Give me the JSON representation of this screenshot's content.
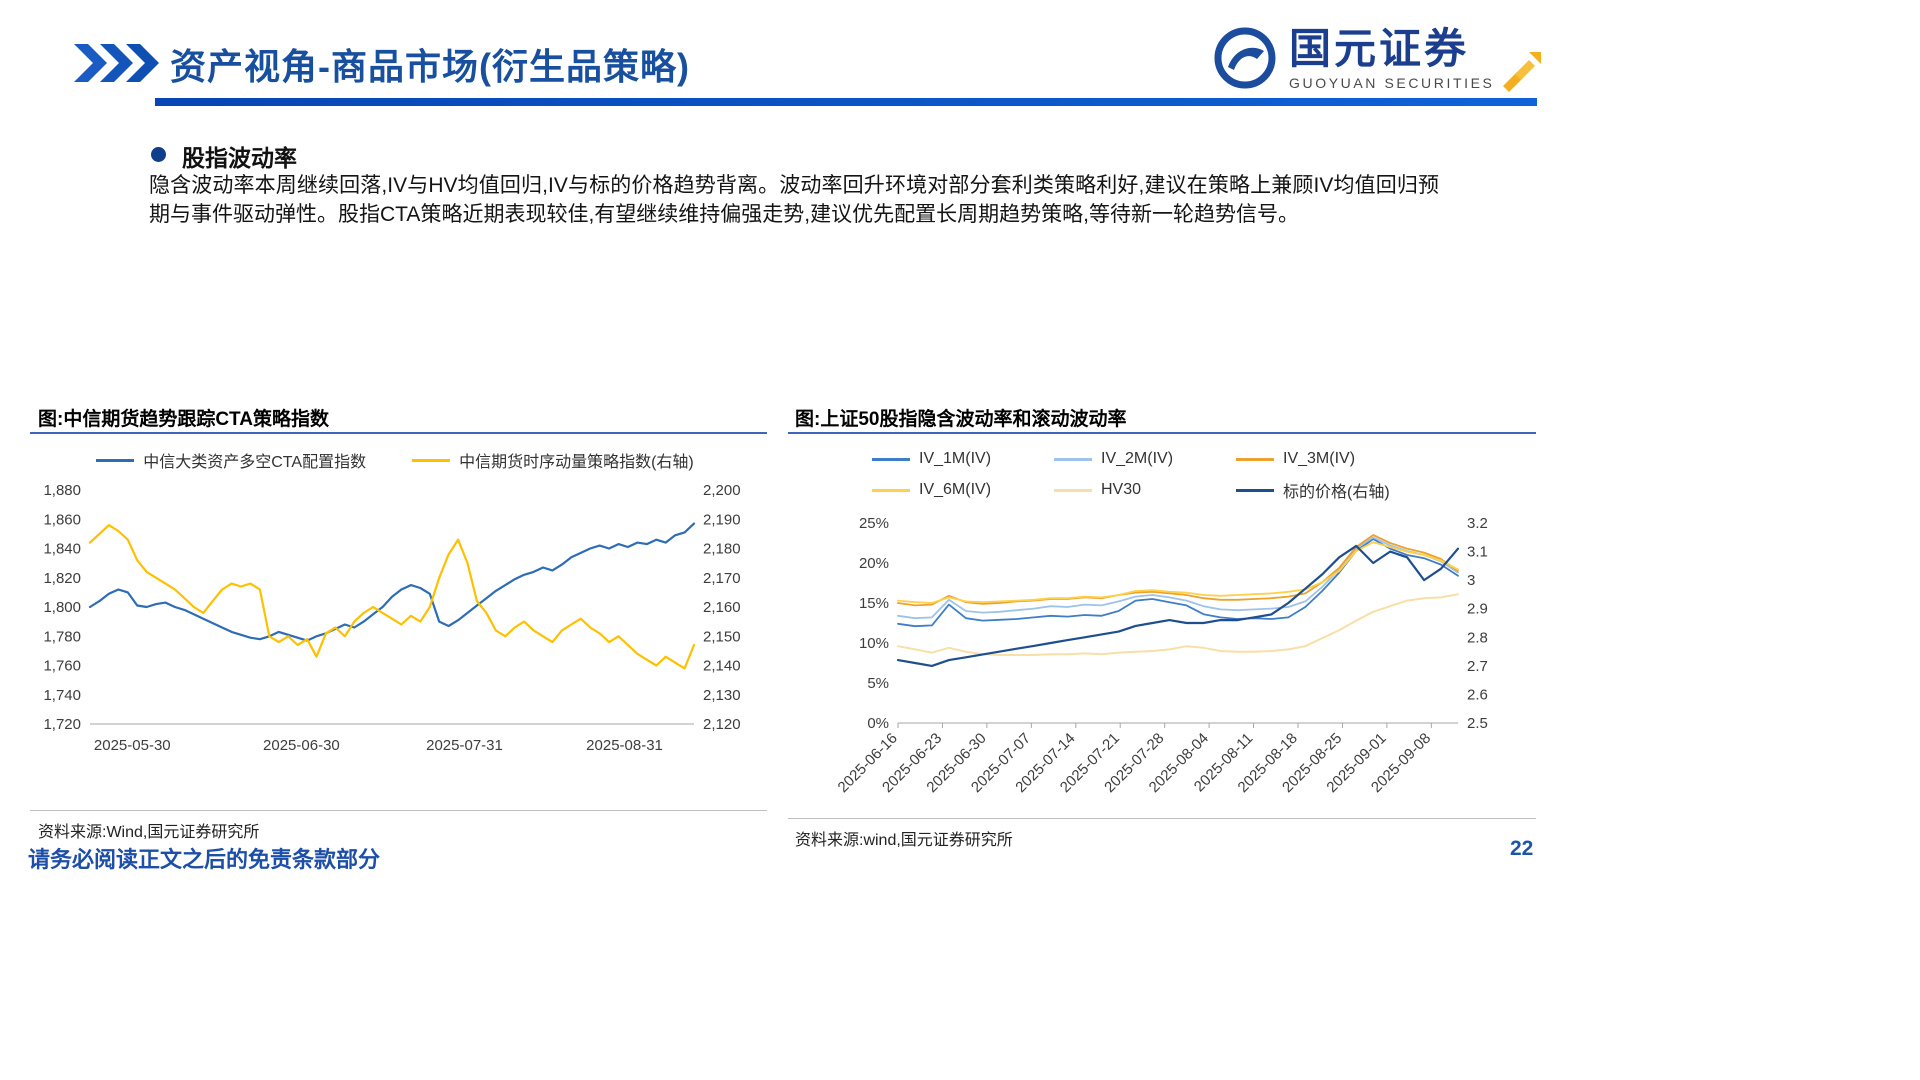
{
  "header": {
    "title": "资产视角-商品市场(衍生品策略)",
    "logo_cn": "国元证券",
    "logo_en": "GUOYUAN SECURITIES"
  },
  "section": {
    "bullet_title": "股指波动率",
    "paragraph": "隐含波动率本周继续回落,IV与HV均值回归,IV与标的价格趋势背离。波动率回升环境对部分套利类策略利好,建议在策略上兼顾IV均值回归预期与事件驱动弹性。股指CTA策略近期表现较佳,有望继续维持偏强走势,建议优先配置长周期趋势策略,等待新一轮趋势信号。"
  },
  "footer": {
    "disclaimer": "请务必阅读正文之后的免责条款部分",
    "page_number": "22"
  },
  "colors": {
    "accent_blue": "#18509F",
    "bar_blue": "#0E63D6",
    "cta_blue": "#2E6DB5",
    "momentum_yellow": "#FFC000",
    "iv1m": "#3E7DC7",
    "iv2m": "#9DC3E8",
    "iv3m": "#EDA12F",
    "iv6m": "#FFD04A",
    "hv30": "#F8DFA8",
    "price_navy": "#1F4E8F"
  },
  "chart_data": [
    {
      "type": "line",
      "title": "图:中信期货趋势跟踪CTA策略指数",
      "source": "资料来源:Wind,国元证券研究所",
      "legend_position": "top",
      "grid": false,
      "left_axis": {
        "min": 1720,
        "max": 1880,
        "ticks": [
          {
            "v": 1720,
            "label": "1,720"
          },
          {
            "v": 1740,
            "label": "1,740"
          },
          {
            "v": 1760,
            "label": "1,760"
          },
          {
            "v": 1780,
            "label": "1,780"
          },
          {
            "v": 1800,
            "label": "1,800"
          },
          {
            "v": 1820,
            "label": "1,820"
          },
          {
            "v": 1840,
            "label": "1,840"
          },
          {
            "v": 1860,
            "label": "1,860"
          },
          {
            "v": 1880,
            "label": "1,880"
          }
        ]
      },
      "right_axis": {
        "min": 2120,
        "max": 2200,
        "ticks": [
          {
            "v": 2120,
            "label": "2,120"
          },
          {
            "v": 2130,
            "label": "2,130"
          },
          {
            "v": 2140,
            "label": "2,140"
          },
          {
            "v": 2150,
            "label": "2,150"
          },
          {
            "v": 2160,
            "label": "2,160"
          },
          {
            "v": 2170,
            "label": "2,170"
          },
          {
            "v": 2180,
            "label": "2,180"
          },
          {
            "v": 2190,
            "label": "2,190"
          },
          {
            "v": 2200,
            "label": "2,200"
          }
        ]
      },
      "x_ticks": [
        {
          "label": "2025-05-30",
          "pos": 0.07
        },
        {
          "label": "2025-06-30",
          "pos": 0.35
        },
        {
          "label": "2025-07-31",
          "pos": 0.62
        },
        {
          "label": "2025-08-31",
          "pos": 0.885
        }
      ],
      "series": [
        {
          "name": "中信大类资产多空CTA配置指数",
          "color": "#2E6DB5",
          "axis": "left",
          "width": 2.2,
          "values": [
            1800,
            1804,
            1809,
            1812,
            1810,
            1801,
            1800,
            1802,
            1803,
            1800,
            1798,
            1795,
            1792,
            1789,
            1786,
            1783,
            1781,
            1779,
            1778,
            1780,
            1783,
            1781,
            1779,
            1777,
            1780,
            1782,
            1785,
            1788,
            1786,
            1790,
            1795,
            1800,
            1807,
            1812,
            1815,
            1813,
            1809,
            1790,
            1787,
            1791,
            1796,
            1801,
            1806,
            1811,
            1815,
            1819,
            1822,
            1824,
            1827,
            1825,
            1829,
            1834,
            1837,
            1840,
            1842,
            1840,
            1843,
            1841,
            1844,
            1843,
            1846,
            1844,
            1849,
            1851,
            1857
          ]
        },
        {
          "name": "中信期货时序动量策略指数(右轴)",
          "color": "#FFC000",
          "axis": "right",
          "width": 2.2,
          "values": [
            2182,
            2185,
            2188,
            2186,
            2183,
            2176,
            2172,
            2170,
            2168,
            2166,
            2163,
            2160,
            2158,
            2162,
            2166,
            2168,
            2167,
            2168,
            2166,
            2150,
            2148,
            2150,
            2147,
            2149,
            2143,
            2151,
            2153,
            2150,
            2155,
            2158,
            2160,
            2158,
            2156,
            2154,
            2157,
            2155,
            2160,
            2170,
            2178,
            2183,
            2175,
            2162,
            2158,
            2152,
            2150,
            2153,
            2155,
            2152,
            2150,
            2148,
            2152,
            2154,
            2156,
            2153,
            2151,
            2148,
            2150,
            2147,
            2144,
            2142,
            2140,
            2143,
            2141,
            2139,
            2147
          ]
        }
      ]
    },
    {
      "type": "line",
      "title": "图:上证50股指隐含波动率和滚动波动率",
      "source": "资料来源:wind,国元证券研究所",
      "legend_position": "top",
      "grid": false,
      "left_axis": {
        "min": 0,
        "max": 25,
        "ticks": [
          {
            "v": 0,
            "label": "0%"
          },
          {
            "v": 5,
            "label": "5%"
          },
          {
            "v": 10,
            "label": "10%"
          },
          {
            "v": 15,
            "label": "15%"
          },
          {
            "v": 20,
            "label": "20%"
          },
          {
            "v": 25,
            "label": "25%"
          }
        ]
      },
      "right_axis": {
        "min": 2.5,
        "max": 3.2,
        "ticks": [
          {
            "v": 2.5,
            "label": "2.5"
          },
          {
            "v": 2.6,
            "label": "2.6"
          },
          {
            "v": 2.7,
            "label": "2.7"
          },
          {
            "v": 2.8,
            "label": "2.8"
          },
          {
            "v": 2.9,
            "label": "2.9"
          },
          {
            "v": 3.0,
            "label": "3"
          },
          {
            "v": 3.1,
            "label": "3.1"
          },
          {
            "v": 3.2,
            "label": "3.2"
          }
        ]
      },
      "x_ticks": [
        {
          "label": "2025-06-16",
          "pos": 0.0
        },
        {
          "label": "2025-06-23",
          "pos": 0.0794
        },
        {
          "label": "2025-06-30",
          "pos": 0.1587
        },
        {
          "label": "2025-07-07",
          "pos": 0.2381
        },
        {
          "label": "2025-07-14",
          "pos": 0.3175
        },
        {
          "label": "2025-07-21",
          "pos": 0.3968
        },
        {
          "label": "2025-07-28",
          "pos": 0.4762
        },
        {
          "label": "2025-08-04",
          "pos": 0.5556
        },
        {
          "label": "2025-08-11",
          "pos": 0.6349
        },
        {
          "label": "2025-08-18",
          "pos": 0.7143
        },
        {
          "label": "2025-08-25",
          "pos": 0.7937
        },
        {
          "label": "2025-09-01",
          "pos": 0.873
        },
        {
          "label": "2025-09-08",
          "pos": 0.9524
        }
      ],
      "series": [
        {
          "name": "IV_1M(IV)",
          "color": "#3E7DC7",
          "axis": "left",
          "width": 1.8,
          "values": [
            12.4,
            12.1,
            12.2,
            14.8,
            13.1,
            12.8,
            12.9,
            13.0,
            13.2,
            13.4,
            13.3,
            13.5,
            13.4,
            14.0,
            15.3,
            15.5,
            15.1,
            14.7,
            13.6,
            13.2,
            13.0,
            13.1,
            13.0,
            13.2,
            14.5,
            16.5,
            18.8,
            21.5,
            23.0,
            21.8,
            21.0,
            20.6,
            19.8,
            18.4
          ]
        },
        {
          "name": "IV_2M(IV)",
          "color": "#9DC3E8",
          "axis": "left",
          "width": 1.8,
          "values": [
            13.4,
            13.1,
            13.2,
            15.4,
            14.0,
            13.8,
            13.9,
            14.1,
            14.3,
            14.6,
            14.5,
            14.8,
            14.7,
            15.2,
            15.8,
            16.0,
            15.7,
            15.3,
            14.6,
            14.2,
            14.1,
            14.2,
            14.3,
            14.5,
            15.2,
            17.0,
            19.2,
            21.8,
            23.2,
            22.2,
            21.5,
            21.0,
            20.2,
            18.8
          ]
        },
        {
          "name": "IV_3M(IV)",
          "color": "#EDA12F",
          "axis": "left",
          "width": 1.8,
          "values": [
            15.0,
            14.7,
            14.8,
            15.9,
            15.1,
            14.9,
            15.0,
            15.2,
            15.3,
            15.5,
            15.5,
            15.7,
            15.6,
            16.0,
            16.3,
            16.4,
            16.2,
            16.0,
            15.6,
            15.4,
            15.4,
            15.5,
            15.6,
            15.8,
            16.2,
            17.6,
            19.4,
            22.0,
            23.5,
            22.5,
            21.8,
            21.3,
            20.5,
            19.0
          ]
        },
        {
          "name": "IV_6M(IV)",
          "color": "#FFD04A",
          "axis": "left",
          "width": 1.8,
          "values": [
            15.3,
            15.1,
            15.0,
            15.7,
            15.2,
            15.1,
            15.2,
            15.3,
            15.4,
            15.6,
            15.6,
            15.8,
            15.7,
            16.0,
            16.5,
            16.6,
            16.4,
            16.3,
            16.0,
            15.9,
            16.0,
            16.1,
            16.2,
            16.4,
            16.7,
            17.6,
            19.0,
            21.5,
            22.6,
            22.0,
            21.4,
            21.0,
            20.3,
            19.2
          ]
        },
        {
          "name": "HV30",
          "color": "#F8DFA8",
          "axis": "left",
          "width": 2,
          "values": [
            9.6,
            9.2,
            8.8,
            9.4,
            8.9,
            8.6,
            8.5,
            8.5,
            8.5,
            8.6,
            8.6,
            8.7,
            8.6,
            8.8,
            8.9,
            9.0,
            9.2,
            9.6,
            9.4,
            9.0,
            8.9,
            8.9,
            9.0,
            9.2,
            9.6,
            10.6,
            11.6,
            12.8,
            13.9,
            14.6,
            15.3,
            15.6,
            15.7,
            16.1
          ]
        },
        {
          "name": "标的价格(右轴)",
          "color": "#1F4E8F",
          "axis": "right",
          "width": 2.2,
          "values": [
            2.72,
            2.71,
            2.7,
            2.72,
            2.73,
            2.74,
            2.75,
            2.76,
            2.77,
            2.78,
            2.79,
            2.8,
            2.81,
            2.82,
            2.84,
            2.85,
            2.86,
            2.85,
            2.85,
            2.86,
            2.86,
            2.87,
            2.88,
            2.92,
            2.97,
            3.02,
            3.08,
            3.12,
            3.06,
            3.1,
            3.08,
            3.0,
            3.04,
            3.11
          ]
        }
      ]
    }
  ]
}
